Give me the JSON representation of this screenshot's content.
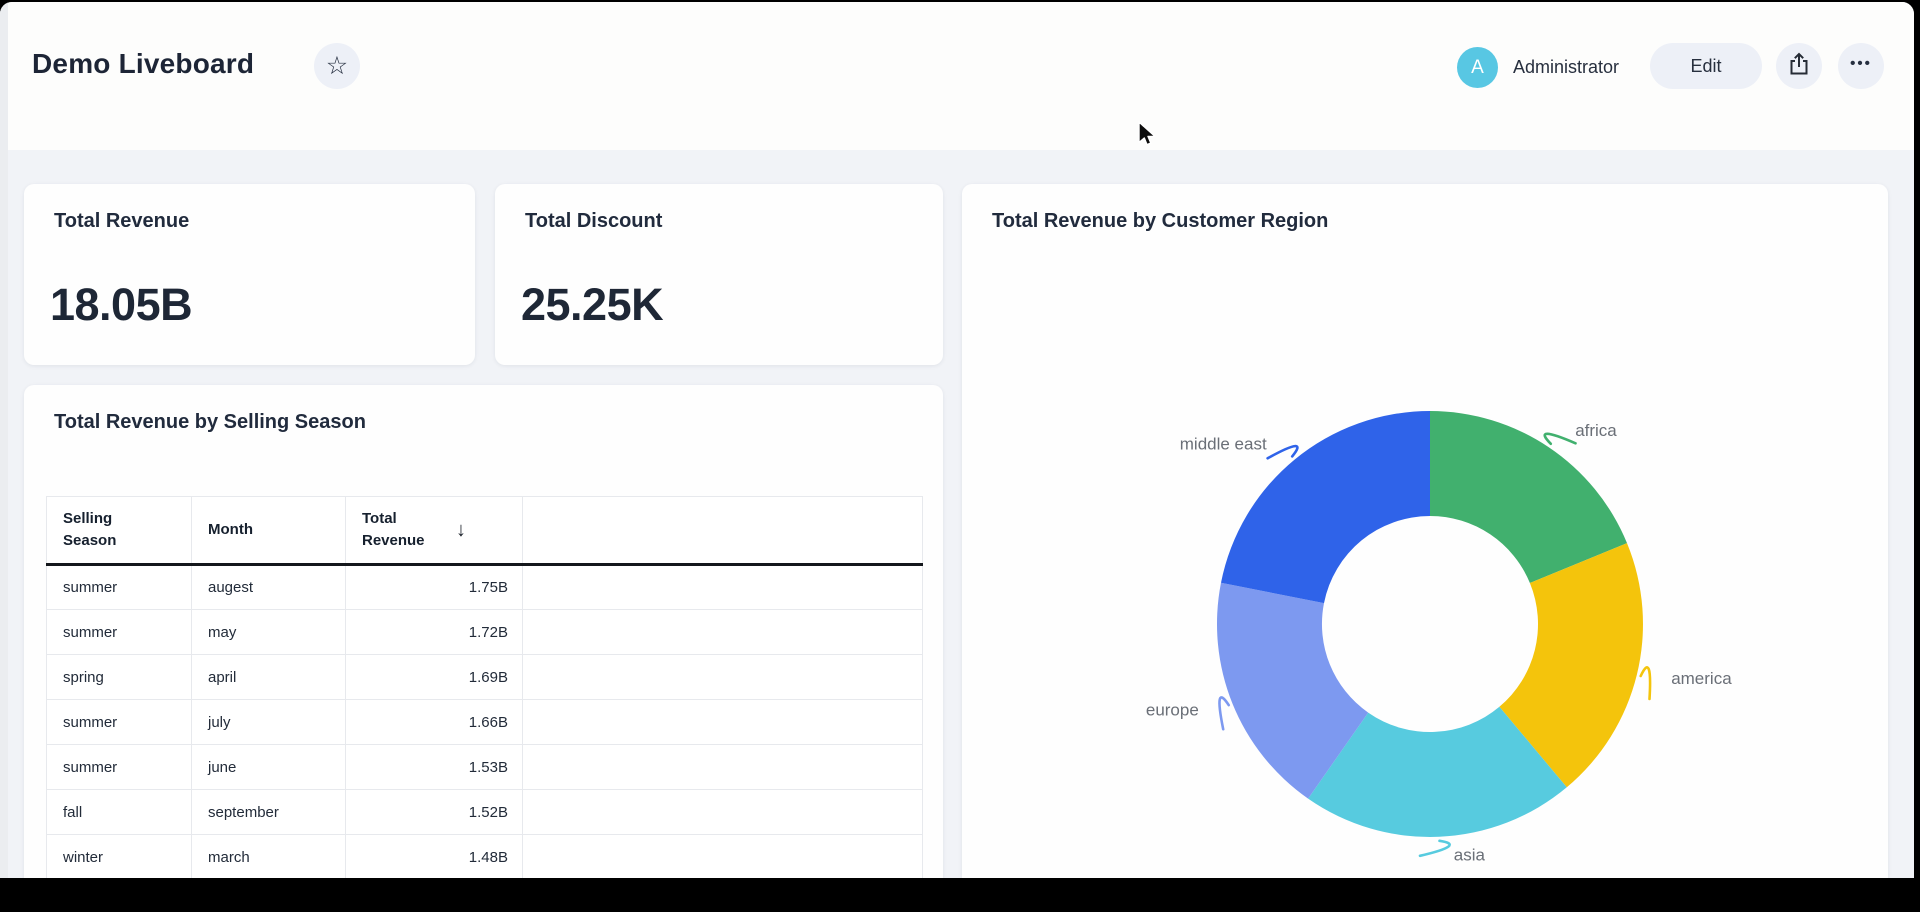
{
  "header": {
    "title": "Demo Liveboard",
    "avatar_initial": "A",
    "user_name": "Administrator",
    "edit_label": "Edit"
  },
  "icons": {
    "favorite_star": "☆",
    "more_ellipsis": "•••",
    "sort_descending": "↓",
    "share": "share-arrow-out-of-box"
  },
  "kpi_cards": [
    {
      "title": "Total Revenue",
      "value": "18.05B"
    },
    {
      "title": "Total Discount",
      "value": "25.25K"
    }
  ],
  "table_card": {
    "title": "Total Revenue by Selling Season",
    "columns": [
      "Selling Season",
      "Month",
      "Total Revenue"
    ],
    "sorted_column": "Total Revenue",
    "sort_direction": "descending",
    "rows": [
      [
        "summer",
        "augest",
        "1.75B"
      ],
      [
        "summer",
        "may",
        "1.72B"
      ],
      [
        "spring",
        "april",
        "1.69B"
      ],
      [
        "summer",
        "july",
        "1.66B"
      ],
      [
        "summer",
        "june",
        "1.53B"
      ],
      [
        "fall",
        "september",
        "1.52B"
      ],
      [
        "winter",
        "march",
        "1.48B"
      ]
    ]
  },
  "chart_card": {
    "title": "Total Revenue by Customer Region"
  },
  "chart_data": {
    "type": "pie",
    "subtype": "donut",
    "title": "Total Revenue by Customer Region",
    "categories": [
      "africa",
      "america",
      "asia",
      "europe",
      "middle east"
    ],
    "values": [
      18.8,
      20.1,
      20.8,
      18.4,
      21.9
    ],
    "values_unit": "percent_of_total_estimated_from_arc_angles",
    "colors": [
      "#41b06e",
      "#f4c40c",
      "#57cbdf",
      "#7d99f0",
      "#2f63e9"
    ],
    "start_angle_deg": 0,
    "clockwise": true,
    "inner_radius_ratio": 0.5,
    "labels": "outside-with-connectors",
    "label_color": "#6a6f77",
    "legend": "none"
  },
  "colors": {
    "frame": "#000000",
    "header_bg": "#fdfdfc",
    "content_bg": "#f1f3f7",
    "card_bg": "#fefefe",
    "button_bg": "#edf0f7",
    "avatar_bg": "#58c7e3",
    "text_dark": "#1e2736",
    "table_border": "#e7e9ed",
    "table_header_rule": "#14171c"
  }
}
